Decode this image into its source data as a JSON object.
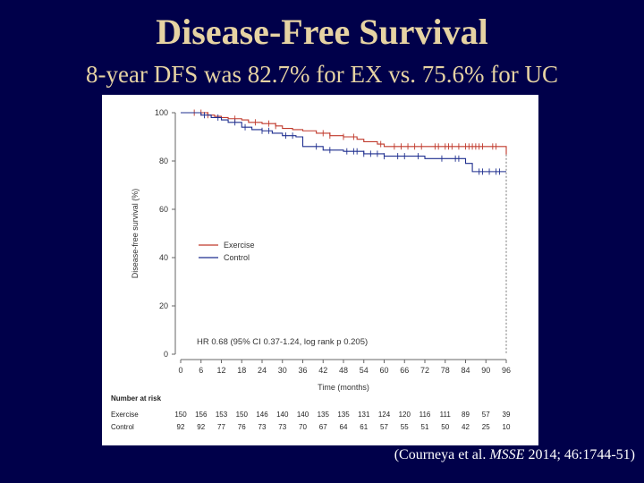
{
  "slide": {
    "title": "Disease-Free Survival",
    "subtitle": "8-year DFS was 82.7% for EX vs. 75.6% for UC",
    "citation": {
      "prefix": "(Courneya et al. ",
      "journal": "MSSE",
      "suffix": " 2014; 46:1744-51)"
    }
  },
  "colors": {
    "background": "#00004a",
    "title": "#e6d3a3",
    "exercise": "#c0392b",
    "control": "#1f2f8f"
  },
  "chart_data": {
    "type": "line",
    "title": "",
    "xlabel": "Time (months)",
    "ylabel": "Disease-free survival (%)",
    "xlim": [
      0,
      96
    ],
    "ylim": [
      0,
      100
    ],
    "xticks": [
      0,
      6,
      12,
      18,
      24,
      30,
      36,
      42,
      48,
      54,
      60,
      66,
      72,
      78,
      84,
      90,
      96
    ],
    "yticks": [
      0,
      20,
      40,
      60,
      80,
      100
    ],
    "legend": "center-left",
    "annotation": "HR 0.68 (95% CI 0.37-1.24, log rank p 0.205)",
    "series": [
      {
        "name": "Exercise",
        "color": "#c0392b",
        "x": [
          0,
          6,
          8,
          10,
          12,
          14,
          18,
          20,
          24,
          28,
          30,
          33,
          36,
          40,
          44,
          48,
          52,
          54,
          58,
          60,
          78,
          96
        ],
        "y": [
          100,
          100,
          99,
          98.5,
          98,
          97.5,
          97,
          96,
          95.5,
          94.5,
          93.5,
          93,
          92.5,
          91.5,
          90.5,
          90,
          89,
          88,
          87,
          86,
          86,
          82.7
        ],
        "censor_x": [
          4,
          6,
          8,
          16,
          22,
          26,
          28,
          42,
          44,
          48,
          51,
          59,
          63,
          65,
          67,
          69,
          71,
          75,
          76,
          78,
          79,
          80,
          82,
          84,
          85,
          86,
          87,
          88,
          89,
          92,
          93
        ]
      },
      {
        "name": "Control",
        "color": "#1f2f8f",
        "x": [
          0,
          6,
          9,
          12,
          14,
          18,
          21,
          24,
          27,
          30,
          34,
          36,
          42,
          48,
          54,
          60,
          66,
          72,
          84,
          86,
          96
        ],
        "y": [
          100,
          99,
          98,
          97,
          96,
          94,
          93,
          92.5,
          91.5,
          90.5,
          90,
          86,
          84.5,
          84,
          83,
          82,
          82,
          81,
          79,
          75.6,
          75.6
        ],
        "censor_x": [
          7,
          11,
          16,
          19,
          24,
          26,
          31,
          33,
          40,
          44,
          49,
          51,
          52,
          54,
          56,
          58,
          60,
          64,
          66,
          70,
          77,
          81,
          82,
          88,
          89,
          91,
          93,
          94
        ]
      }
    ],
    "risk_table": {
      "heading": "Number at risk",
      "rows": [
        {
          "label": "Exercise",
          "values": [
            "150",
            "156",
            "153",
            "150",
            "146",
            "140",
            "140",
            "135",
            "135",
            "131",
            "124",
            "120",
            "116",
            "111",
            "89",
            "57",
            "39"
          ]
        },
        {
          "label": "Control",
          "values": [
            "92",
            "92",
            "77",
            "76",
            "73",
            "73",
            "70",
            "67",
            "64",
            "61",
            "57",
            "55",
            "51",
            "50",
            "42",
            "25",
            "10"
          ]
        }
      ]
    }
  }
}
